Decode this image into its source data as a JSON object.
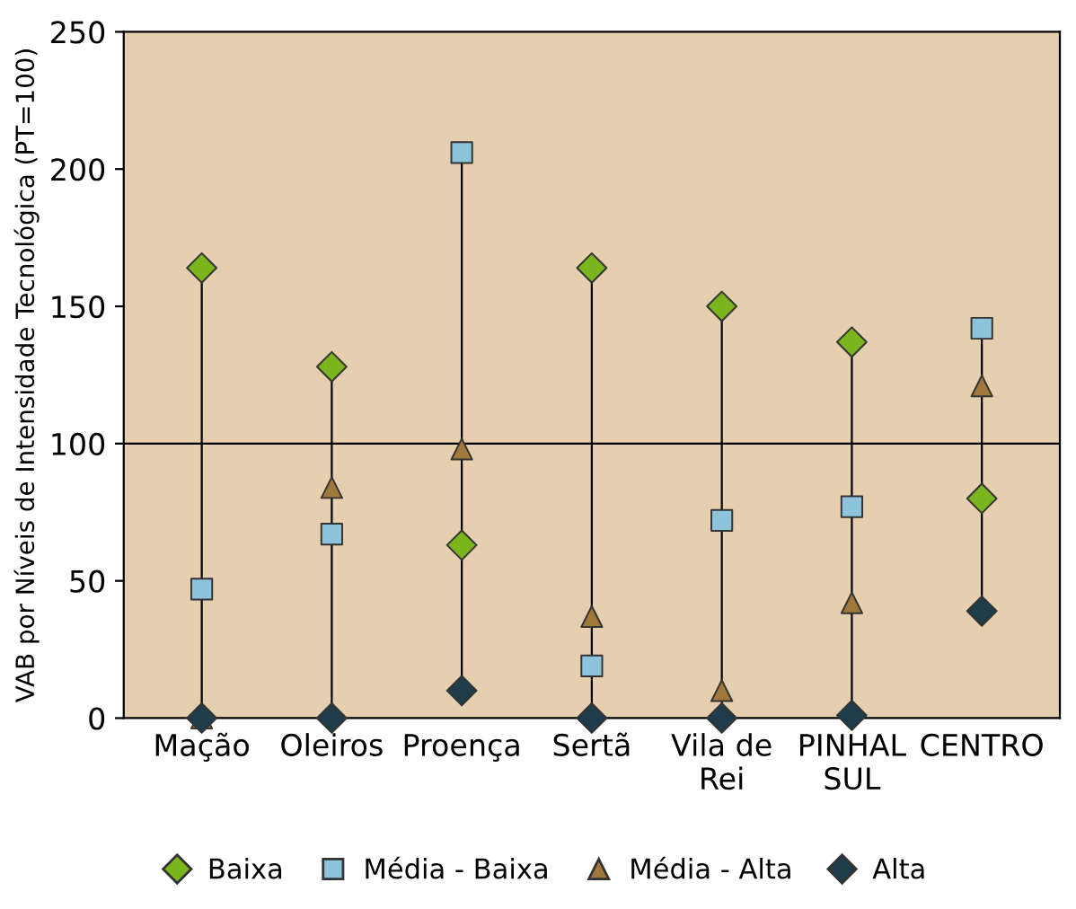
{
  "chart_data": {
    "type": "scatter",
    "ylabel": "VAB por Níveis de Intensidade Tecnológica (PT=100)",
    "categories": [
      "Mação",
      "Oleiros",
      "Proença",
      "Sertã",
      "Vila de Rei",
      "PINHAL SUL",
      "CENTRO"
    ],
    "series": [
      {
        "name": "Baixa",
        "color": "#7ab51d",
        "marker": "diamond",
        "values": [
          164,
          128,
          63,
          164,
          150,
          137,
          80
        ]
      },
      {
        "name": "Média - Baixa",
        "color": "#8ec3dc",
        "marker": "square",
        "values": [
          47,
          67,
          206,
          19,
          72,
          77,
          142
        ]
      },
      {
        "name": "Média - Alta",
        "color": "#a0783c",
        "marker": "triangle",
        "values": [
          0,
          84,
          98,
          37,
          10,
          42,
          121
        ]
      },
      {
        "name": "Alta",
        "color": "#1e3c4a",
        "marker": "diamond",
        "values": [
          0,
          0,
          10,
          0,
          0,
          1,
          39
        ]
      }
    ],
    "ylim": [
      0,
      250
    ],
    "yticks": [
      0,
      50,
      100,
      150,
      200,
      250
    ],
    "ref_lines": [
      {
        "axis": "y",
        "value": 100,
        "color": "#000000"
      }
    ],
    "legend": "bottom"
  }
}
